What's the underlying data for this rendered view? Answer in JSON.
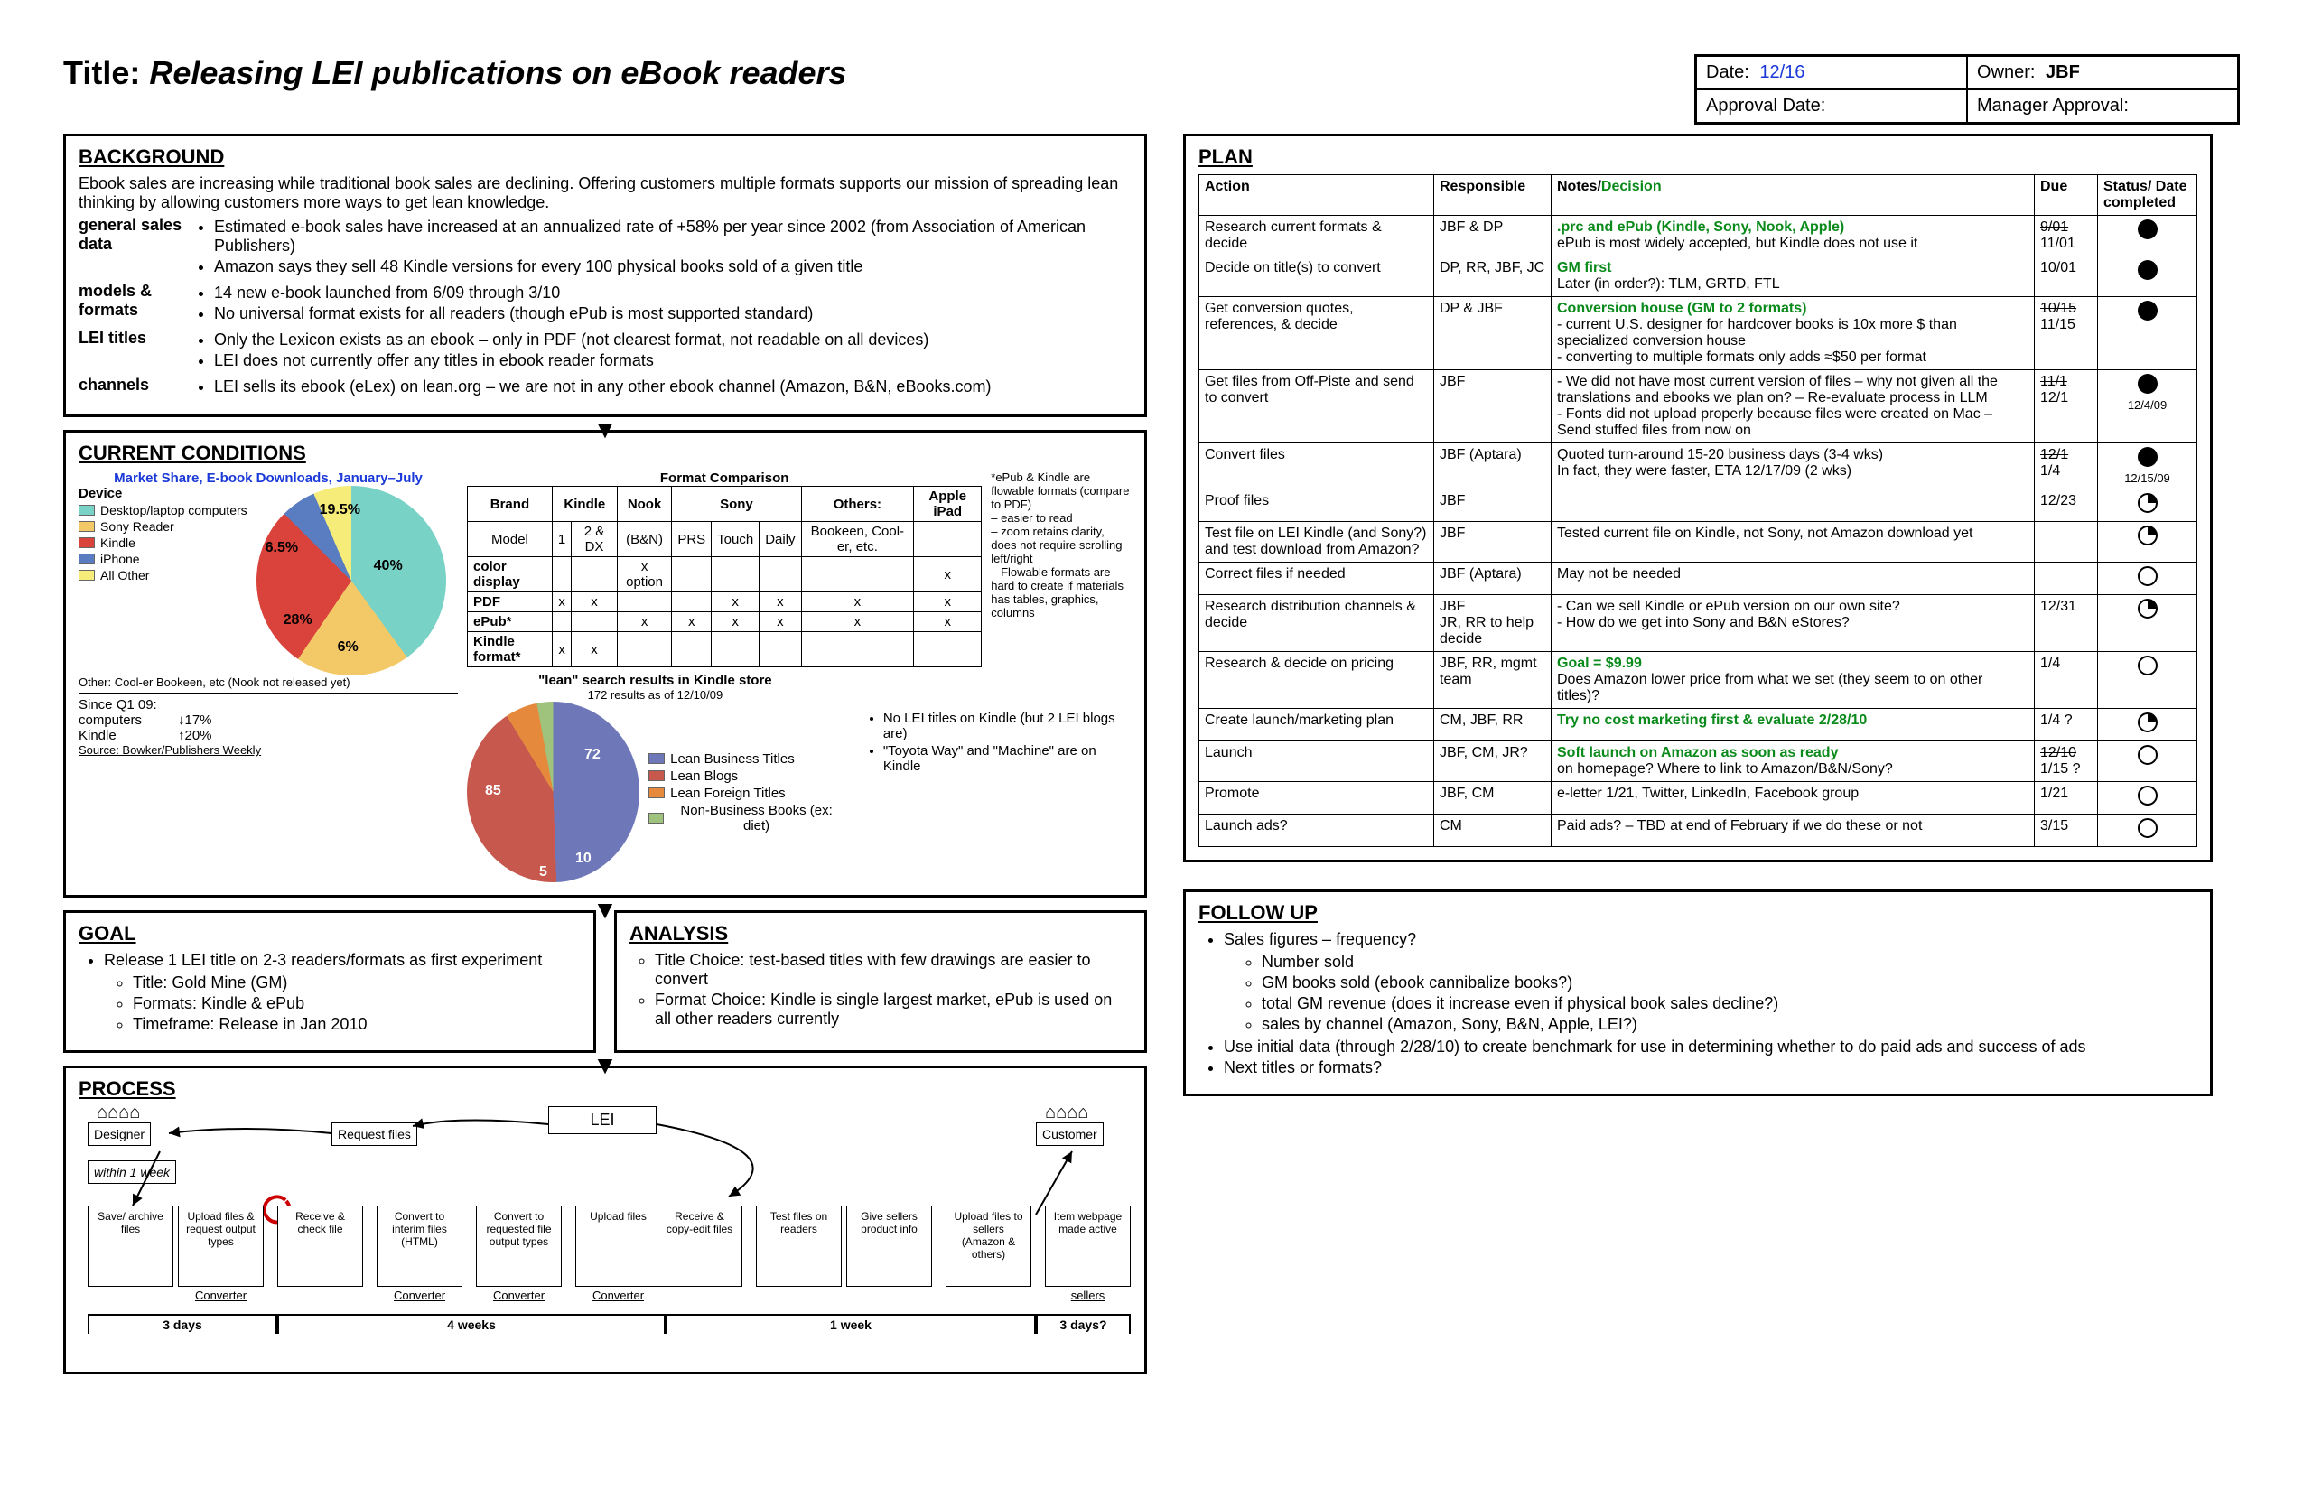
{
  "title_prefix": "Title: ",
  "title": "Releasing LEI publications on eBook readers",
  "meta": {
    "date_label": "Date:",
    "date_value": "12/16",
    "owner_label": "Owner:",
    "owner_value": "JBF",
    "approval_label": "Approval Date:",
    "approval_value": "",
    "manager_label": "Manager Approval:",
    "manager_value": ""
  },
  "background": {
    "heading": "BACKGROUND",
    "intro": "Ebook sales are increasing while traditional book sales are declining. Offering customers multiple formats supports our mission of spreading lean thinking by allowing customers more ways to get lean knowledge.",
    "rows": [
      {
        "label": "general sales data",
        "items": [
          "Estimated e-book sales have increased at an annualized rate of +58% per year since 2002 (from Association of American Publishers)",
          "Amazon says they sell 48 Kindle versions for every 100 physical books sold of a given title"
        ]
      },
      {
        "label": "models & formats",
        "items": [
          "14 new e-book launched from 6/09 through 3/10",
          "No universal format exists for all readers (though ePub is most supported standard)"
        ]
      },
      {
        "label": "LEI titles",
        "items": [
          "Only the Lexicon exists as an ebook – only in PDF (not clearest format, not readable on all devices)",
          "LEI does not currently offer any titles in ebook reader formats"
        ]
      },
      {
        "label": "channels",
        "items": [
          "LEI sells its ebook (eLex) on lean.org – we are not in any other ebook channel (Amazon, B&N, eBooks.com)"
        ]
      }
    ]
  },
  "current": {
    "heading": "CURRENT CONDITIONS",
    "pie1_title": "Market Share, E-book Downloads, January–July",
    "pie1": {
      "slices": [
        {
          "label": "Desktop/laptop computers",
          "pct": 40,
          "color": "#79d2c6"
        },
        {
          "label": "Sony Reader",
          "pct": 19.5,
          "color": "#f3c867"
        },
        {
          "label": "Kindle",
          "pct": 28,
          "color": "#d9433b"
        },
        {
          "label": "iPhone",
          "pct": 6,
          "color": "#5a7cc0"
        },
        {
          "label": "All Other",
          "pct": 6.5,
          "color": "#f6ec7a"
        }
      ],
      "legend_header": "Device",
      "note_below": "Other: Cool-er Bookeen, etc (Nook not released yet)",
      "since_label": "Since Q1 09:",
      "since_rows": [
        {
          "k": "computers",
          "v": "↓17%"
        },
        {
          "k": "Kindle",
          "v": "↑20%"
        }
      ],
      "source": "Source: Bowker/Publishers Weekly"
    },
    "fmt": {
      "title": "Format Comparison",
      "brand_row": [
        "Brand",
        "Kindle",
        "Nook",
        "Sony",
        "",
        "",
        "Others:",
        "Apple iPad"
      ],
      "model_row": [
        "Model",
        "1",
        "2 & DX",
        "(B&N)",
        "PRS",
        "Touch",
        "Daily",
        "Bookeen, Cool-er, etc.",
        ""
      ],
      "rows": [
        {
          "name": "color display",
          "cells": [
            "",
            "",
            "x option",
            "",
            "",
            "",
            "",
            "x"
          ]
        },
        {
          "name": "PDF",
          "cells": [
            "x",
            "x",
            "",
            "",
            "x",
            "x",
            "x",
            "x"
          ]
        },
        {
          "name": "ePub*",
          "cells": [
            "",
            "",
            "x",
            "x",
            "x",
            "x",
            "x",
            "x"
          ]
        },
        {
          "name": "Kindle format*",
          "cells": [
            "x",
            "x",
            "",
            "",
            "",
            "",
            "",
            ""
          ]
        }
      ],
      "side_note": "*ePub & Kindle are flowable formats (compare to PDF)\n– easier to read\n– zoom retains clarity, does not require scrolling left/right\n– Flowable formats are hard to create if materials has tables, graphics, columns"
    },
    "pie2_title": "\"lean\" search results in Kindle store",
    "pie2_sub": "172 results as of 12/10/09",
    "pie2": {
      "slices": [
        {
          "label": "Lean Business Titles",
          "val": 85,
          "color": "#6e78b8"
        },
        {
          "label": "Lean Blogs",
          "val": 72,
          "color": "#c6584e"
        },
        {
          "label": "Lean Foreign Titles",
          "val": 10,
          "color": "#e58a3c"
        },
        {
          "label": "Non-Business Books (ex: diet)",
          "val": 5,
          "color": "#9fc27c"
        }
      ]
    },
    "right_notes": [
      "No LEI titles on Kindle (but 2 LEI blogs are)",
      "\"Toyota Way\" and \"Machine\" are on Kindle"
    ]
  },
  "goal": {
    "heading": "GOAL",
    "top": "Release 1 LEI title on 2-3 readers/formats as first experiment",
    "subs": [
      "Title: Gold Mine (GM)",
      "Formats: Kindle & ePub",
      "Timeframe: Release in Jan 2010"
    ]
  },
  "analysis": {
    "heading": "ANALYSIS",
    "items": [
      "Title Choice: test-based titles with few drawings are easier to convert",
      "Format Choice: Kindle is single largest market, ePub is used on all other readers currently"
    ]
  },
  "process": {
    "heading": "PROCESS",
    "top_designer": "Designer",
    "top_lei": "LEI",
    "top_customer": "Customer",
    "req_files": "Request files",
    "within": "within 1 week",
    "steps": [
      "Save/ archive files",
      "Upload files & request output types",
      "Receive & check file",
      "Convert to interim files (HTML)",
      "Convert to requested file output types",
      "Upload files",
      "Receive & copy-edit files",
      "Test files on readers",
      "Give sellers product info",
      "Upload files to sellers (Amazon & others)",
      "Item webpage made active"
    ],
    "sub_labels": [
      "Converter",
      "Converter",
      "Converter",
      "Converter",
      "sellers"
    ],
    "timeline": [
      "3 days",
      "4 weeks",
      "1 week",
      "3 days?"
    ]
  },
  "plan": {
    "heading": "PLAN",
    "cols": [
      "Action",
      "Responsible",
      "Notes/",
      "Due",
      "Status/ Date completed"
    ],
    "notes_decision": "Decision",
    "rows": [
      {
        "action": "Research current formats & decide",
        "resp": "JBF & DP",
        "notes": "ePub is most widely accepted, but Kindle does not use it",
        "decision": ".prc and ePub (Kindle, Sony, Nook, Apple)",
        "due_strike": "9/01",
        "due": "11/01",
        "status": "full",
        "done": ""
      },
      {
        "action": "Decide on title(s) to convert",
        "resp": "DP, RR, JBF, JC",
        "notes": "Later (in order?): TLM, GRTD, FTL",
        "decision": "GM first",
        "due": "10/01",
        "status": "full",
        "done": ""
      },
      {
        "action": "Get conversion quotes, references, & decide",
        "resp": "DP & JBF",
        "notes": "- current U.S. designer for hardcover books is 10x more $ than specialized conversion house\n- converting to multiple formats only adds ≈$50 per format",
        "decision": "Conversion house (GM to 2 formats)",
        "due_strike": "10/15",
        "due": "11/15",
        "status": "full",
        "done": ""
      },
      {
        "action": "Get files from Off-Piste and send to convert",
        "resp": "JBF",
        "notes": "- We did not have most current version of files – why not given all the translations and ebooks we plan on? – Re-evaluate process in LLM\n- Fonts did not upload properly because files were created on Mac – Send stuffed files from now on",
        "due_strike": "11/1",
        "due": "12/1",
        "status": "full",
        "done": "12/4/09"
      },
      {
        "action": "Convert files",
        "resp": "JBF (Aptara)",
        "notes": "Quoted turn-around 15-20 business days (3-4 wks)\nIn fact, they were faster, ETA 12/17/09 (2 wks)",
        "due_strike": "12/1",
        "due": "1/4",
        "status": "full",
        "done": "12/15/09"
      },
      {
        "action": "Proof files",
        "resp": "JBF",
        "notes": "",
        "due": "12/23",
        "status": "half",
        "done": ""
      },
      {
        "action": "Test file on LEI Kindle (and Sony?) and test download from Amazon?",
        "resp": "JBF",
        "notes": "Tested current file on Kindle, not Sony, not Amazon download yet",
        "due": "",
        "status": "half",
        "done": ""
      },
      {
        "action": "Correct files if needed",
        "resp": "JBF (Aptara)",
        "notes": "May not be needed",
        "due": "",
        "status": "empty",
        "done": ""
      },
      {
        "action": "Research distribution channels & decide",
        "resp": "JBF\nJR, RR to help decide",
        "notes": "- Can we sell Kindle or ePub version on our own site?\n- How do we get into Sony and B&N eStores?",
        "due": "12/31",
        "status": "half",
        "done": ""
      },
      {
        "action": "Research & decide on pricing",
        "resp": "JBF, RR, mgmt team",
        "notes": "Does Amazon lower price from what we set (they seem to on other titles)?",
        "decision": "Goal = $9.99",
        "due": "1/4",
        "status": "empty",
        "done": ""
      },
      {
        "action": "Create launch/marketing plan",
        "resp": "CM, JBF, RR",
        "decision": "Try no cost marketing first & evaluate 2/28/10",
        "notes": "",
        "due": "1/4 ?",
        "status": "half",
        "done": ""
      },
      {
        "action": "Launch",
        "resp": "JBF, CM, JR?",
        "decision": "Soft launch on Amazon as soon as ready",
        "notes": "on homepage? Where to link to Amazon/B&N/Sony?",
        "due_strike": "12/10",
        "due": "1/15 ?",
        "status": "empty",
        "done": ""
      },
      {
        "action": "Promote",
        "resp": "JBF, CM",
        "notes": "e-letter 1/21, Twitter, LinkedIn, Facebook group",
        "due": "1/21",
        "status": "empty",
        "done": ""
      },
      {
        "action": "Launch ads?",
        "resp": "CM",
        "notes": "Paid ads? – TBD at end of February if we do these or not",
        "due": "3/15",
        "status": "empty",
        "done": ""
      }
    ]
  },
  "followup": {
    "heading": "FOLLOW UP",
    "b1": "Sales figures – frequency?",
    "subs": [
      "Number sold",
      "GM books sold (ebook cannibalize books?)",
      "total GM revenue (does it increase even if physical book sales decline?)",
      "sales by channel (Amazon, Sony, B&N, Apple, LEI?)"
    ],
    "b2": "Use initial data (through 2/28/10) to create benchmark for use in determining whether to do paid ads and success of ads",
    "b3": "Next titles or formats?"
  }
}
